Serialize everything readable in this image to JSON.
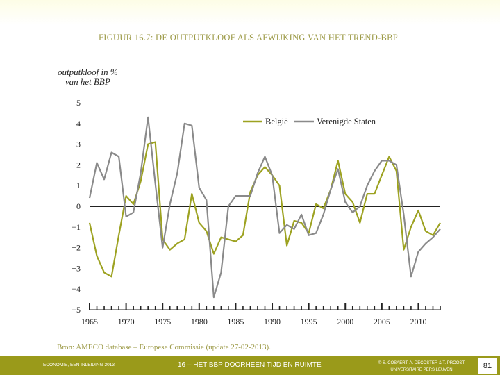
{
  "figure": {
    "title": "FIGUUR 16.7: DE OUTPUTKLOOF ALS AFWIJKING VAN HET TREND-BBP",
    "source": "Bron: AMECO database – Europese Commissie (update 27-02-2013).",
    "y_title_line1": "outputkloof in %",
    "y_title_line2": "van het BBP"
  },
  "footer": {
    "left": "ECONOMIE, EEN INLEIDING 2013",
    "middle": "16 – HET BBP DOORHEEN TIJD EN RUIMTE",
    "right_line1": "© S. COSAERT, A. DECOSTER & T. PROOST",
    "right_line2": "UNIVERSITAIRE PERS LEUVEN",
    "page": "81"
  },
  "colors": {
    "belgie": "#9da221",
    "vs": "#8a8a8a",
    "zero_line": "#222222",
    "accent": "#9a9a1a"
  },
  "chart_data": {
    "type": "line",
    "xlabel": "",
    "ylabel": "outputkloof in % van het BBP",
    "xlim": [
      1965,
      2013
    ],
    "ylim": [
      -5,
      5
    ],
    "x_ticks": [
      1965,
      1970,
      1975,
      1980,
      1985,
      1990,
      1995,
      2000,
      2005,
      2010
    ],
    "x_tick_labels": [
      "1965",
      "1970",
      "1975",
      "1980",
      "1985",
      "1990",
      "1995",
      "2000",
      "2005",
      "2010"
    ],
    "y_ticks": [
      5,
      4,
      3,
      2,
      1,
      0,
      -1,
      -2,
      -3,
      -4,
      -5
    ],
    "y_tick_labels": [
      "5",
      "4",
      "3",
      "2",
      "1",
      "0",
      "−1",
      "−2",
      "−3",
      "−4",
      "−5"
    ],
    "legend_position": "top-right",
    "x": [
      1965,
      1966,
      1967,
      1968,
      1969,
      1970,
      1971,
      1972,
      1973,
      1974,
      1975,
      1976,
      1977,
      1978,
      1979,
      1980,
      1981,
      1982,
      1983,
      1984,
      1985,
      1986,
      1987,
      1988,
      1989,
      1990,
      1991,
      1992,
      1993,
      1994,
      1995,
      1996,
      1997,
      1998,
      1999,
      2000,
      2001,
      2002,
      2003,
      2004,
      2005,
      2006,
      2007,
      2008,
      2009,
      2010,
      2011,
      2012,
      2013
    ],
    "series": [
      {
        "name": "België",
        "color_key": "belgie",
        "values": [
          -0.8,
          -2.4,
          -3.2,
          -3.4,
          -1.4,
          0.5,
          0.1,
          1.2,
          3.0,
          3.1,
          -1.6,
          -2.1,
          -1.8,
          -1.6,
          0.6,
          -0.8,
          -1.2,
          -2.3,
          -1.5,
          -1.6,
          -1.7,
          -1.4,
          0.7,
          1.5,
          1.9,
          1.5,
          1.0,
          -1.9,
          -0.7,
          -0.8,
          -1.3,
          0.1,
          -0.1,
          0.8,
          2.2,
          0.6,
          0.2,
          -0.8,
          0.6,
          0.6,
          1.5,
          2.4,
          1.7,
          -2.1,
          -1.0,
          -0.2,
          -1.2,
          -1.4,
          -0.8
        ]
      },
      {
        "name": "Verenigde Staten",
        "color_key": "vs",
        "values": [
          0.4,
          2.1,
          1.3,
          2.6,
          2.4,
          -0.5,
          -0.3,
          1.6,
          4.3,
          1.1,
          -2.0,
          0.1,
          1.6,
          4.0,
          3.9,
          0.9,
          0.3,
          -4.4,
          -3.2,
          0.0,
          0.5,
          0.5,
          0.5,
          1.6,
          2.4,
          1.5,
          -1.3,
          -0.9,
          -1.1,
          -0.4,
          -1.4,
          -1.3,
          -0.4,
          0.8,
          1.8,
          0.2,
          -0.3,
          0.0,
          1.0,
          1.7,
          2.2,
          2.2,
          2.0,
          -0.4,
          -3.4,
          -2.2,
          -1.8,
          -1.5,
          -1.1
        ]
      }
    ]
  }
}
